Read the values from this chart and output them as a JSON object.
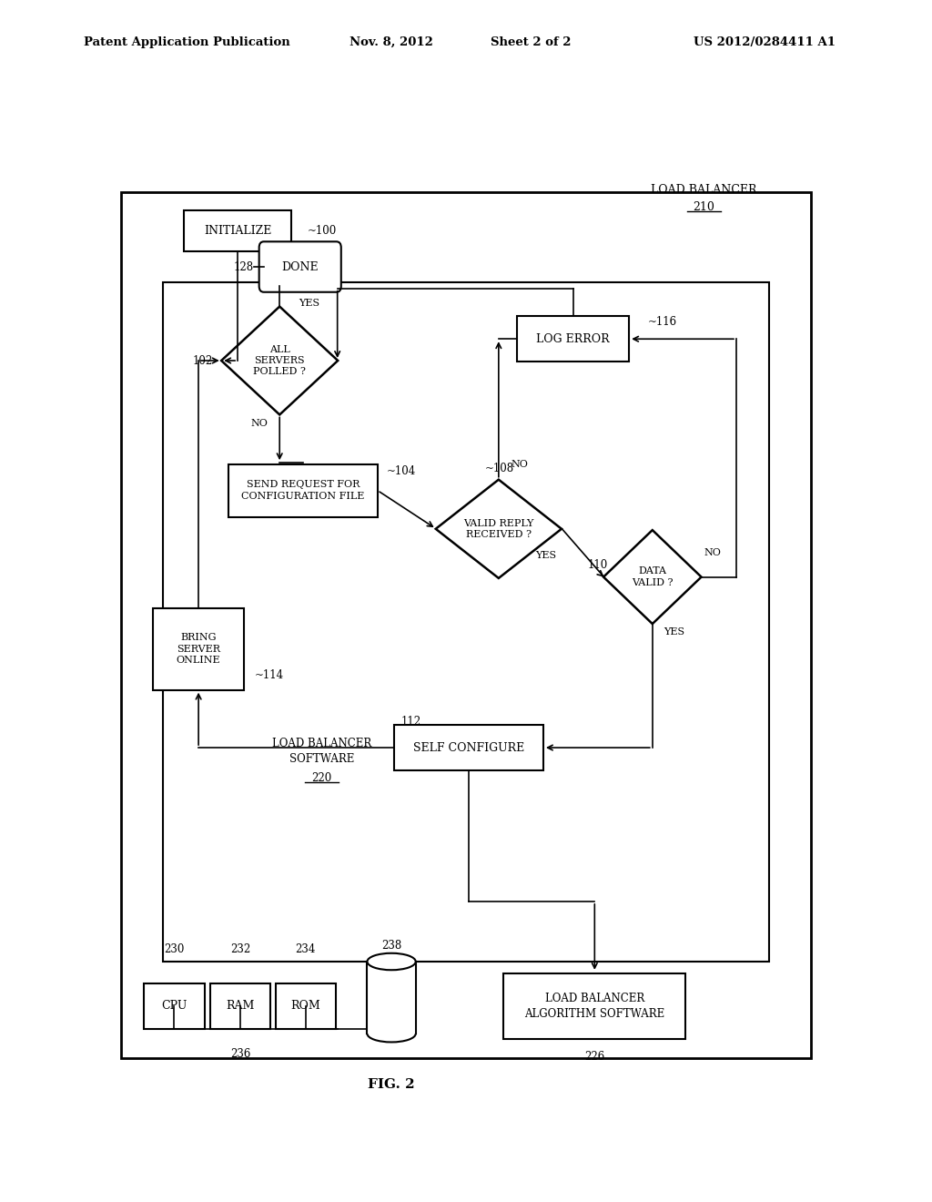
{
  "bg_color": "#ffffff",
  "header_text": "Patent Application Publication",
  "header_date": "Nov. 8, 2012",
  "header_sheet": "Sheet 2 of 2",
  "header_patent": "US 2012/0284411 A1",
  "fig_label": "FIG. 2"
}
